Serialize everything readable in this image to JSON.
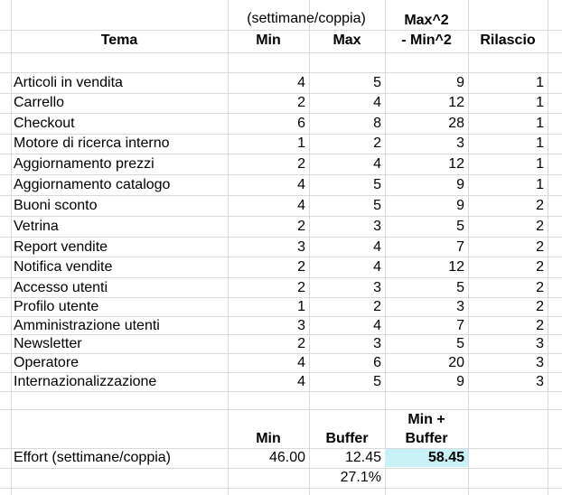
{
  "header": {
    "group_label": "(settimane/coppia)",
    "tema": "Tema",
    "min": "Min",
    "max": "Max",
    "diff_line1": "Max^2",
    "diff_line2": "- Min^2",
    "rilascio": "Rilascio"
  },
  "rows": [
    {
      "tema": "Articoli in vendita",
      "min": "4",
      "max": "5",
      "diff": "9",
      "rilascio": "1"
    },
    {
      "tema": "Carrello",
      "min": "2",
      "max": "4",
      "diff": "12",
      "rilascio": "1"
    },
    {
      "tema": "Checkout",
      "min": "6",
      "max": "8",
      "diff": "28",
      "rilascio": "1"
    },
    {
      "tema": "Motore di ricerca interno",
      "min": "1",
      "max": "2",
      "diff": "3",
      "rilascio": "1"
    },
    {
      "tema": "Aggiornamento prezzi",
      "min": "2",
      "max": "4",
      "diff": "12",
      "rilascio": "1"
    },
    {
      "tema": "Aggiornamento catalogo",
      "min": "4",
      "max": "5",
      "diff": "9",
      "rilascio": "1"
    },
    {
      "tema": "Buoni sconto",
      "min": "4",
      "max": "5",
      "diff": "9",
      "rilascio": "2"
    },
    {
      "tema": "Vetrina",
      "min": "2",
      "max": "3",
      "diff": "5",
      "rilascio": "2"
    },
    {
      "tema": "Report vendite",
      "min": "3",
      "max": "4",
      "diff": "7",
      "rilascio": "2"
    },
    {
      "tema": "Notifica vendite",
      "min": "2",
      "max": "4",
      "diff": "12",
      "rilascio": "2"
    },
    {
      "tema": "Accesso utenti",
      "min": "2",
      "max": "3",
      "diff": "5",
      "rilascio": "2"
    },
    {
      "tema": "Profilo utente",
      "min": "1",
      "max": "2",
      "diff": "3",
      "rilascio": "2"
    },
    {
      "tema": "Amministrazione utenti",
      "min": "3",
      "max": "4",
      "diff": "7",
      "rilascio": "2"
    },
    {
      "tema": "Newsletter",
      "min": "2",
      "max": "3",
      "diff": "5",
      "rilascio": "3"
    },
    {
      "tema": "Operatore",
      "min": "4",
      "max": "6",
      "diff": "20",
      "rilascio": "3"
    },
    {
      "tema": "Internazionalizzazione",
      "min": "4",
      "max": "5",
      "diff": "9",
      "rilascio": "3"
    }
  ],
  "summary": {
    "min_label": "Min",
    "buffer_label": "Buffer",
    "total_label_line1": "Min +",
    "total_label_line2": "Buffer",
    "row_label": "Effort (settimane/coppia)",
    "min_value": "46.00",
    "buffer_value": "12.45",
    "total_value": "58.45",
    "buffer_percent": "27.1%"
  },
  "colors": {
    "grid": "#d9d9d9",
    "highlight": "#c7f0f7"
  }
}
